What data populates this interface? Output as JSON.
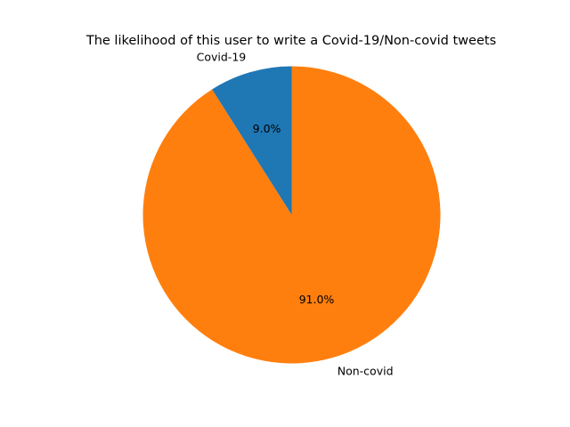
{
  "chart_data": {
    "type": "pie",
    "title": "The likelihood of this user to write a Covid-19/Non-covid tweets",
    "labels": [
      "Covid-19",
      "Non-covid"
    ],
    "values": [
      9.0,
      91.0
    ],
    "percent_labels": [
      "9.0%",
      "91.0%"
    ],
    "colors": [
      "#1f77b4",
      "#ff7f0e"
    ],
    "start_angle_deg": 90,
    "direction": "counterclockwise",
    "legend": "none"
  }
}
